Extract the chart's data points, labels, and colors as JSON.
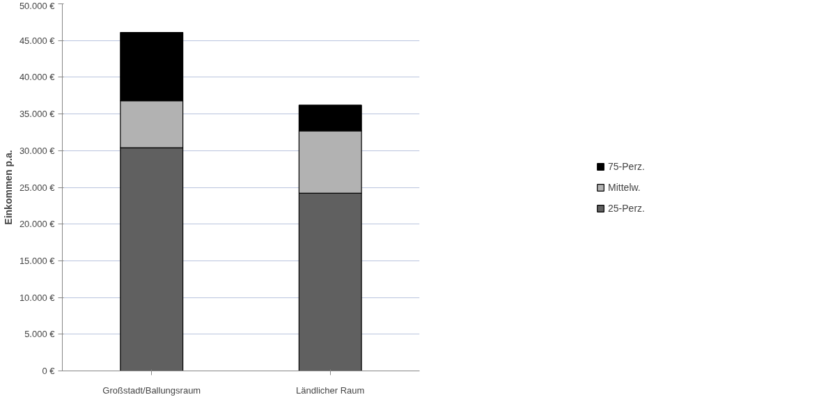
{
  "chart_data": {
    "type": "bar",
    "stacked": true,
    "ylabel": "Einkommen p.a.",
    "categories": [
      "Großstadt/Ballungsraum",
      "Ländlicher Raum"
    ],
    "series": [
      {
        "name": "25-Perz.",
        "color": "#606060",
        "values": [
          30400,
          24200
        ]
      },
      {
        "name": "Mittelw.",
        "color": "#b2b2b2",
        "values": [
          6400,
          8500
        ]
      },
      {
        "name": "75-Perz.",
        "color": "#000000",
        "values": [
          9300,
          3500
        ]
      }
    ],
    "ylim": [
      0,
      50000
    ],
    "yticks": [
      {
        "value": 0,
        "label": "0 €"
      },
      {
        "value": 5000,
        "label": "5.000 €"
      },
      {
        "value": 10000,
        "label": "10.000 €"
      },
      {
        "value": 15000,
        "label": "15.000 €"
      },
      {
        "value": 20000,
        "label": "20.000 €"
      },
      {
        "value": 25000,
        "label": "25.000 €"
      },
      {
        "value": 30000,
        "label": "30.000 €"
      },
      {
        "value": 35000,
        "label": "35.000 €"
      },
      {
        "value": 40000,
        "label": "40.000 €"
      },
      {
        "value": 45000,
        "label": "45.000 €"
      },
      {
        "value": 50000,
        "label": "50.000 €"
      }
    ],
    "grid": "y",
    "legend": "right"
  }
}
